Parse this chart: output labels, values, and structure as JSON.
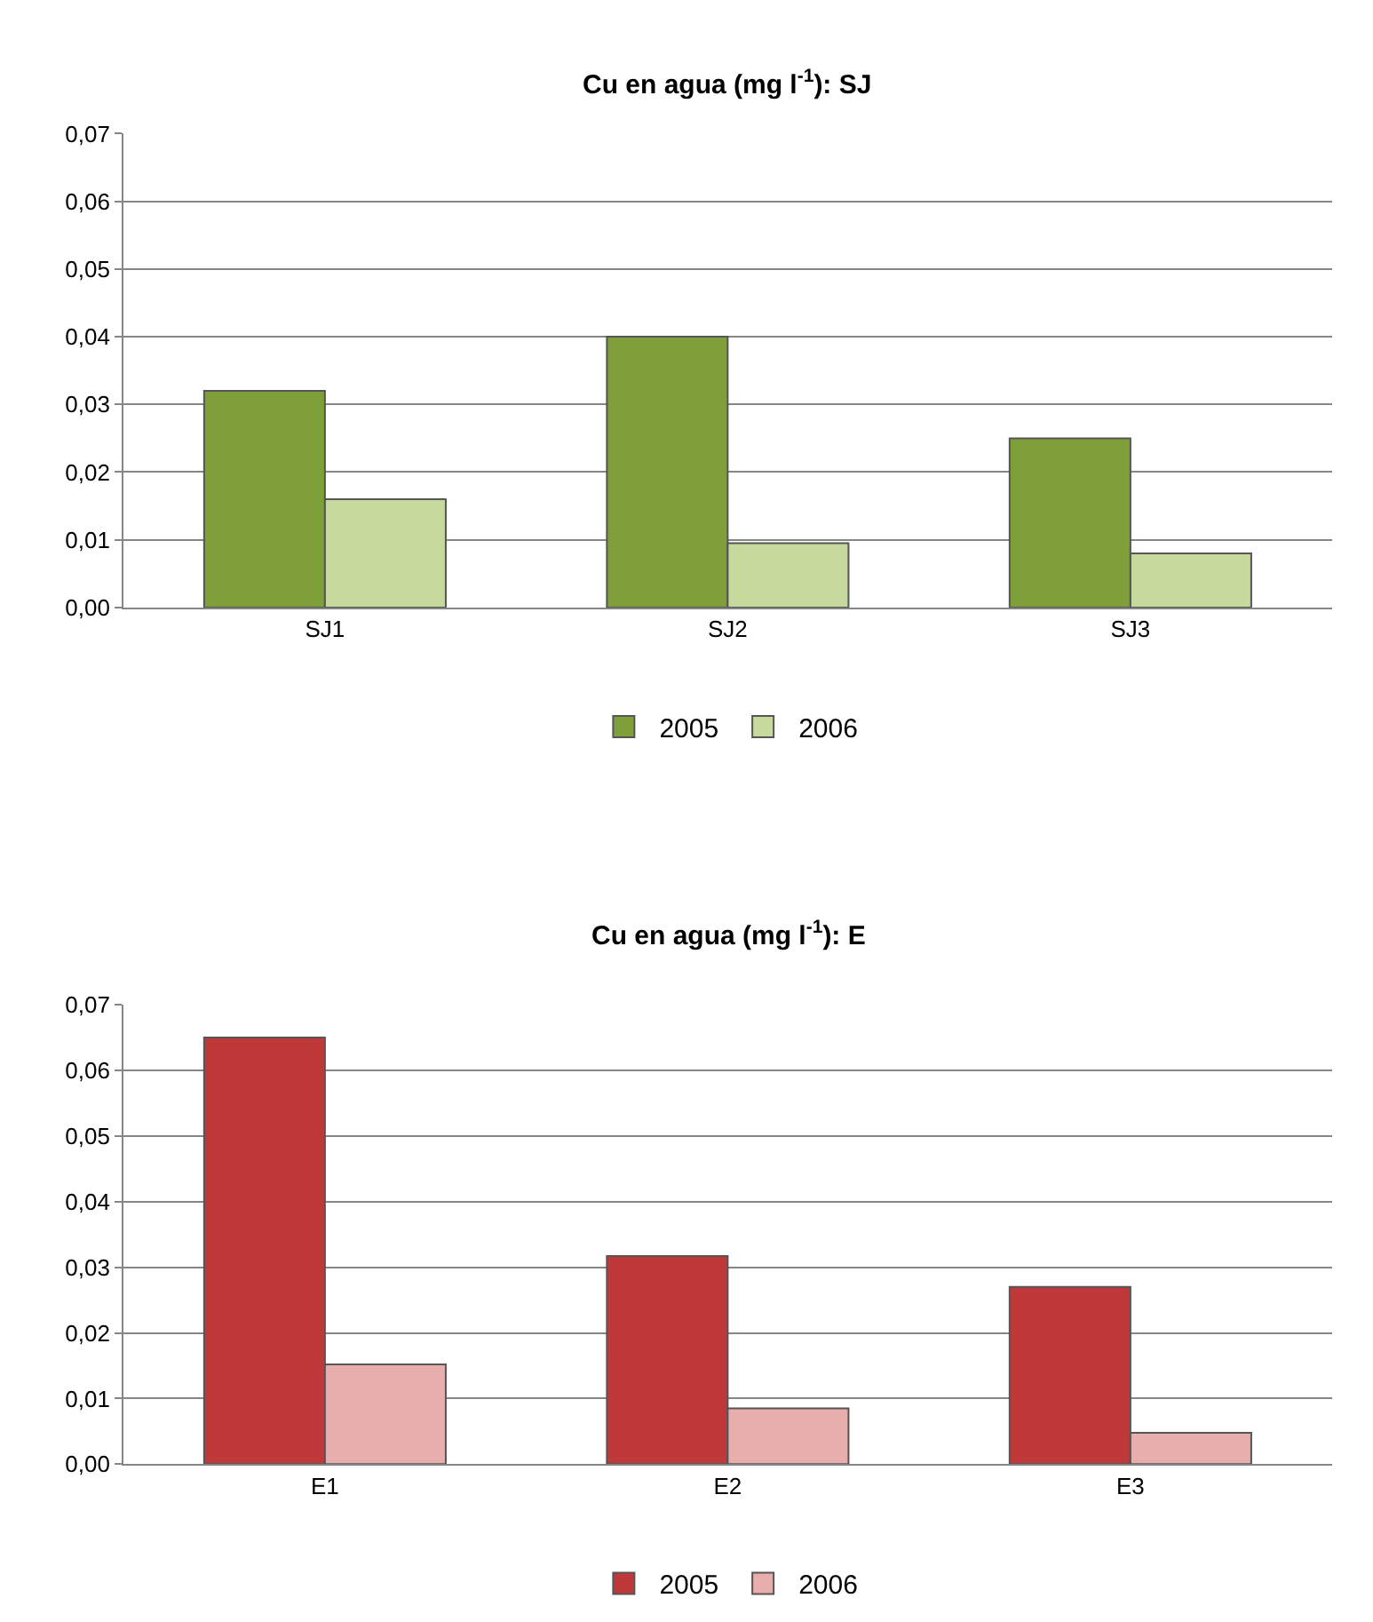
{
  "chart_data": [
    {
      "type": "bar",
      "title": "Cu en agua (mg l$^{-1}$): SJ",
      "categories": [
        "SJ1",
        "SJ2",
        "SJ3"
      ],
      "series": [
        {
          "name": "2005",
          "color": "#7f9f3a",
          "values": [
            0.032,
            0.04,
            0.025
          ]
        },
        {
          "name": "2006",
          "color": "#c6da9e",
          "values": [
            0.016,
            0.0095,
            0.008
          ]
        }
      ],
      "ylim": [
        0,
        0.07
      ],
      "yticks": [
        {
          "value": 0,
          "label": "0,00"
        },
        {
          "value": 0.01,
          "label": "0,01"
        },
        {
          "value": 0.02,
          "label": "0,02"
        },
        {
          "value": 0.03,
          "label": "0,03"
        },
        {
          "value": 0.04,
          "label": "0,04"
        },
        {
          "value": 0.05,
          "label": "0,05"
        },
        {
          "value": 0.06,
          "label": "0,06"
        },
        {
          "value": 0.07,
          "label": "0,07"
        }
      ],
      "grid": "y",
      "legend": "bottom"
    },
    {
      "type": "bar",
      "title": "Cu en agua (mg l$^{-1}$): E",
      "categories": [
        "E1",
        "E2",
        "E3"
      ],
      "series": [
        {
          "name": "2005",
          "color": "#c0393a",
          "values": [
            0.065,
            0.0317,
            0.027
          ]
        },
        {
          "name": "2006",
          "color": "#e8aeae",
          "values": [
            0.0152,
            0.0085,
            0.0048
          ]
        }
      ],
      "ylim": [
        0,
        0.07
      ],
      "yticks": [
        {
          "value": 0,
          "label": "0,00"
        },
        {
          "value": 0.01,
          "label": "0,01"
        },
        {
          "value": 0.02,
          "label": "0,02"
        },
        {
          "value": 0.03,
          "label": "0,03"
        },
        {
          "value": 0.04,
          "label": "0,04"
        },
        {
          "value": 0.05,
          "label": "0,05"
        },
        {
          "value": 0.06,
          "label": "0,06"
        },
        {
          "value": 0.07,
          "label": "0,07"
        }
      ],
      "grid": "y",
      "legend": "bottom"
    }
  ]
}
